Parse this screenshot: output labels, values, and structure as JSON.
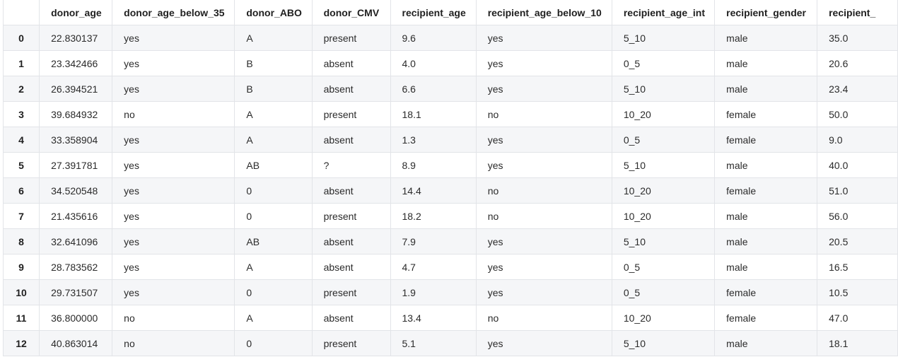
{
  "table": {
    "index_header": "",
    "columns": [
      "donor_age",
      "donor_age_below_35",
      "donor_ABO",
      "donor_CMV",
      "recipient_age",
      "recipient_age_below_10",
      "recipient_age_int",
      "recipient_gender",
      "recipient_"
    ],
    "rows": [
      {
        "index": "0",
        "cells": [
          "22.830137",
          "yes",
          "A",
          "present",
          "9.6",
          "yes",
          "5_10",
          "male",
          "35.0"
        ]
      },
      {
        "index": "1",
        "cells": [
          "23.342466",
          "yes",
          "B",
          "absent",
          "4.0",
          "yes",
          "0_5",
          "male",
          "20.6"
        ]
      },
      {
        "index": "2",
        "cells": [
          "26.394521",
          "yes",
          "B",
          "absent",
          "6.6",
          "yes",
          "5_10",
          "male",
          "23.4"
        ]
      },
      {
        "index": "3",
        "cells": [
          "39.684932",
          "no",
          "A",
          "present",
          "18.1",
          "no",
          "10_20",
          "female",
          "50.0"
        ]
      },
      {
        "index": "4",
        "cells": [
          "33.358904",
          "yes",
          "A",
          "absent",
          "1.3",
          "yes",
          "0_5",
          "female",
          "9.0"
        ]
      },
      {
        "index": "5",
        "cells": [
          "27.391781",
          "yes",
          "AB",
          "?",
          "8.9",
          "yes",
          "5_10",
          "male",
          "40.0"
        ]
      },
      {
        "index": "6",
        "cells": [
          "34.520548",
          "yes",
          "0",
          "absent",
          "14.4",
          "no",
          "10_20",
          "female",
          "51.0"
        ]
      },
      {
        "index": "7",
        "cells": [
          "21.435616",
          "yes",
          "0",
          "present",
          "18.2",
          "no",
          "10_20",
          "male",
          "56.0"
        ]
      },
      {
        "index": "8",
        "cells": [
          "32.641096",
          "yes",
          "AB",
          "absent",
          "7.9",
          "yes",
          "5_10",
          "male",
          "20.5"
        ]
      },
      {
        "index": "9",
        "cells": [
          "28.783562",
          "yes",
          "A",
          "absent",
          "4.7",
          "yes",
          "0_5",
          "male",
          "16.5"
        ]
      },
      {
        "index": "10",
        "cells": [
          "29.731507",
          "yes",
          "0",
          "present",
          "1.9",
          "yes",
          "0_5",
          "female",
          "10.5"
        ]
      },
      {
        "index": "11",
        "cells": [
          "36.800000",
          "no",
          "A",
          "absent",
          "13.4",
          "no",
          "10_20",
          "female",
          "47.0"
        ]
      },
      {
        "index": "12",
        "cells": [
          "40.863014",
          "no",
          "0",
          "present",
          "5.1",
          "yes",
          "5_10",
          "male",
          "18.1"
        ]
      }
    ]
  }
}
